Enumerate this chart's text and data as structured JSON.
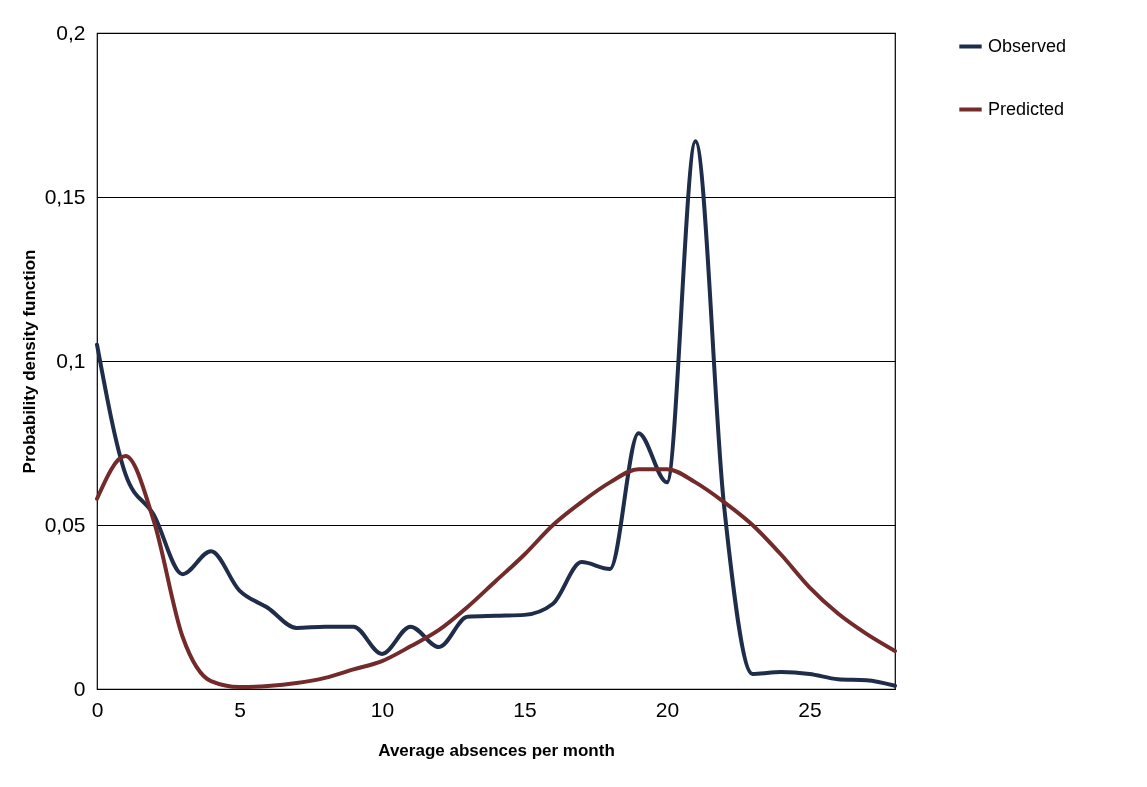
{
  "chart_data": {
    "type": "line",
    "xlabel": "Average absences per month",
    "ylabel": "Probability density function",
    "x": [
      0,
      1,
      2,
      3,
      4,
      5,
      6,
      7,
      8,
      9,
      10,
      11,
      12,
      13,
      14,
      15,
      16,
      17,
      18,
      19,
      20,
      21,
      22,
      23,
      24,
      25,
      26,
      27,
      28
    ],
    "series": [
      {
        "name": "Observed",
        "color": "#1f2d4a",
        "values": [
          0.105,
          0.0655,
          0.053,
          0.035,
          0.042,
          0.03,
          0.0247,
          0.0186,
          0.019,
          0.019,
          0.0107,
          0.019,
          0.0128,
          0.022,
          0.0223,
          0.0226,
          0.026,
          0.0387,
          0.0366,
          0.078,
          0.063,
          0.167,
          0.056,
          0.0046,
          0.0052,
          0.0046,
          0.003,
          0.0027,
          0.001
        ]
      },
      {
        "name": "Predicted",
        "color": "#722b2a",
        "values": [
          0.058,
          0.071,
          0.051,
          0.016,
          0.0024,
          0.0006,
          0.0009,
          0.0018,
          0.0034,
          0.006,
          0.0085,
          0.013,
          0.018,
          0.025,
          0.033,
          0.041,
          0.05,
          0.057,
          0.063,
          0.067,
          0.067,
          0.063,
          0.057,
          0.05,
          0.041,
          0.031,
          0.023,
          0.0168,
          0.0116
        ]
      }
    ],
    "xlim": [
      0,
      28
    ],
    "xticks": [
      0,
      5,
      10,
      15,
      20,
      25
    ],
    "ylim": [
      0,
      0.2
    ],
    "yticks": [
      0,
      {
        "value": 0.05,
        "label": "0,05"
      },
      {
        "value": 0.1,
        "label": "0,1"
      },
      {
        "value": 0.15,
        "label": "0,15"
      },
      {
        "value": 0.2,
        "label": "0,2"
      }
    ],
    "grid": "y",
    "legend": "right",
    "line_style": "solid",
    "marker": "none"
  }
}
